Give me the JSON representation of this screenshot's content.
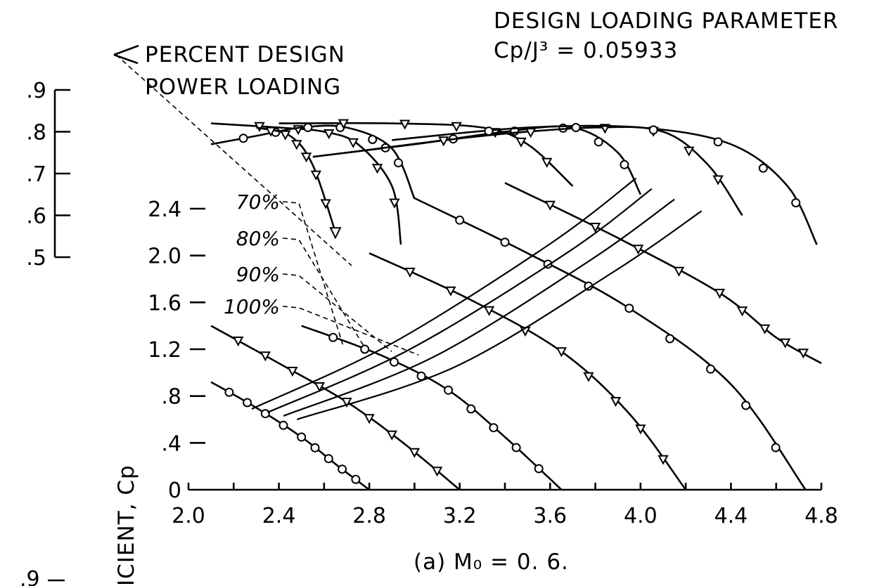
{
  "chart_data": {
    "type": "line",
    "title": "DESIGN LOADING PARAMETER",
    "subtitle": "Cp/J³ = 0.05933",
    "caption": "(a) M₀ = 0. 6.",
    "annotation": [
      "PERCENT DESIGN",
      "POWER LOADING"
    ],
    "ylabel": "ICIENT, Cp",
    "x_ticks": [
      "2.0",
      "2.4",
      "2.8",
      "3.2",
      "3.6",
      "4.0",
      "4.4",
      "4.8"
    ],
    "y_ticks": [
      "0",
      ".4",
      ".8",
      "1.2",
      "1.6",
      "2.0",
      "2.4"
    ],
    "efficiency_ticks": [
      ".9",
      ".8",
      ".7",
      ".6",
      ".5"
    ],
    "bottom_tick": ".9",
    "xlim": [
      2.0,
      4.8
    ],
    "ylim": [
      0,
      3.1
    ],
    "eta_lim": [
      0.5,
      0.9
    ],
    "loading_labels": [
      "70%",
      "80%",
      "90%",
      "100%"
    ],
    "power_curves": [
      {
        "x": [
          2.1,
          2.3,
          2.5,
          2.65,
          2.8
        ],
        "y": [
          0.92,
          0.7,
          0.45,
          0.22,
          0.0
        ]
      },
      {
        "x": [
          2.1,
          2.4,
          2.7,
          2.95,
          3.2
        ],
        "y": [
          1.4,
          1.08,
          0.75,
          0.4,
          0.0
        ]
      },
      {
        "x": [
          2.5,
          2.85,
          3.15,
          3.4,
          3.65
        ],
        "y": [
          1.4,
          1.15,
          0.85,
          0.45,
          0.0
        ]
      },
      {
        "x": [
          2.8,
          3.25,
          3.65,
          3.95,
          4.2
        ],
        "y": [
          2.02,
          1.62,
          1.18,
          0.65,
          0.0
        ]
      },
      {
        "x": [
          3.0,
          3.5,
          3.95,
          4.4,
          4.73
        ],
        "y": [
          2.49,
          2.02,
          1.55,
          0.9,
          0.0
        ]
      },
      {
        "x": [
          3.4,
          3.9,
          4.35,
          4.6,
          4.8
        ],
        "y": [
          2.62,
          2.15,
          1.68,
          1.3,
          1.08
        ]
      }
    ],
    "efficiency_curves": [
      {
        "x": [
          2.1,
          2.4,
          2.6,
          2.75,
          2.9,
          2.94
        ],
        "eta": [
          0.82,
          0.81,
          0.8,
          0.77,
          0.67,
          0.53
        ]
      },
      {
        "x": [
          2.1,
          2.3,
          2.5,
          2.7,
          2.9,
          3.0
        ],
        "eta": [
          0.77,
          0.79,
          0.81,
          0.81,
          0.76,
          0.64
        ]
      },
      {
        "x": [
          2.4,
          2.9,
          3.3,
          3.5,
          3.7
        ],
        "eta": [
          0.82,
          0.82,
          0.81,
          0.77,
          0.67
        ]
      },
      {
        "x": [
          2.55,
          3.0,
          3.4,
          3.7,
          3.9,
          4.0
        ],
        "eta": [
          0.74,
          0.77,
          0.8,
          0.81,
          0.75,
          0.65
        ]
      },
      {
        "x": [
          2.7,
          3.3,
          3.8,
          4.1,
          4.3,
          4.45
        ],
        "eta": [
          0.75,
          0.79,
          0.81,
          0.8,
          0.72,
          0.6
        ]
      },
      {
        "x": [
          2.9,
          3.5,
          4.0,
          4.4,
          4.65,
          4.78
        ],
        "eta": [
          0.78,
          0.81,
          0.81,
          0.77,
          0.67,
          0.53
        ]
      },
      {
        "x": [
          2.3,
          2.45,
          2.55,
          2.65
        ],
        "eta": [
          0.81,
          0.79,
          0.72,
          0.56
        ]
      }
    ],
    "loading_lines": [
      {
        "name": "70%",
        "x": [
          2.28,
          2.9,
          3.6,
          3.98
        ],
        "y": [
          0.69,
          1.25,
          2.1,
          2.66
        ]
      },
      {
        "name": "80%",
        "x": [
          2.35,
          2.98,
          3.68,
          4.05
        ],
        "y": [
          0.66,
          1.2,
          2.03,
          2.57
        ]
      },
      {
        "name": "90%",
        "x": [
          2.42,
          3.08,
          3.77,
          4.15
        ],
        "y": [
          0.63,
          1.13,
          1.95,
          2.48
        ]
      },
      {
        "name": "100%",
        "x": [
          2.48,
          3.18,
          3.88,
          4.27
        ],
        "y": [
          0.6,
          1.05,
          1.86,
          2.38
        ]
      }
    ]
  }
}
